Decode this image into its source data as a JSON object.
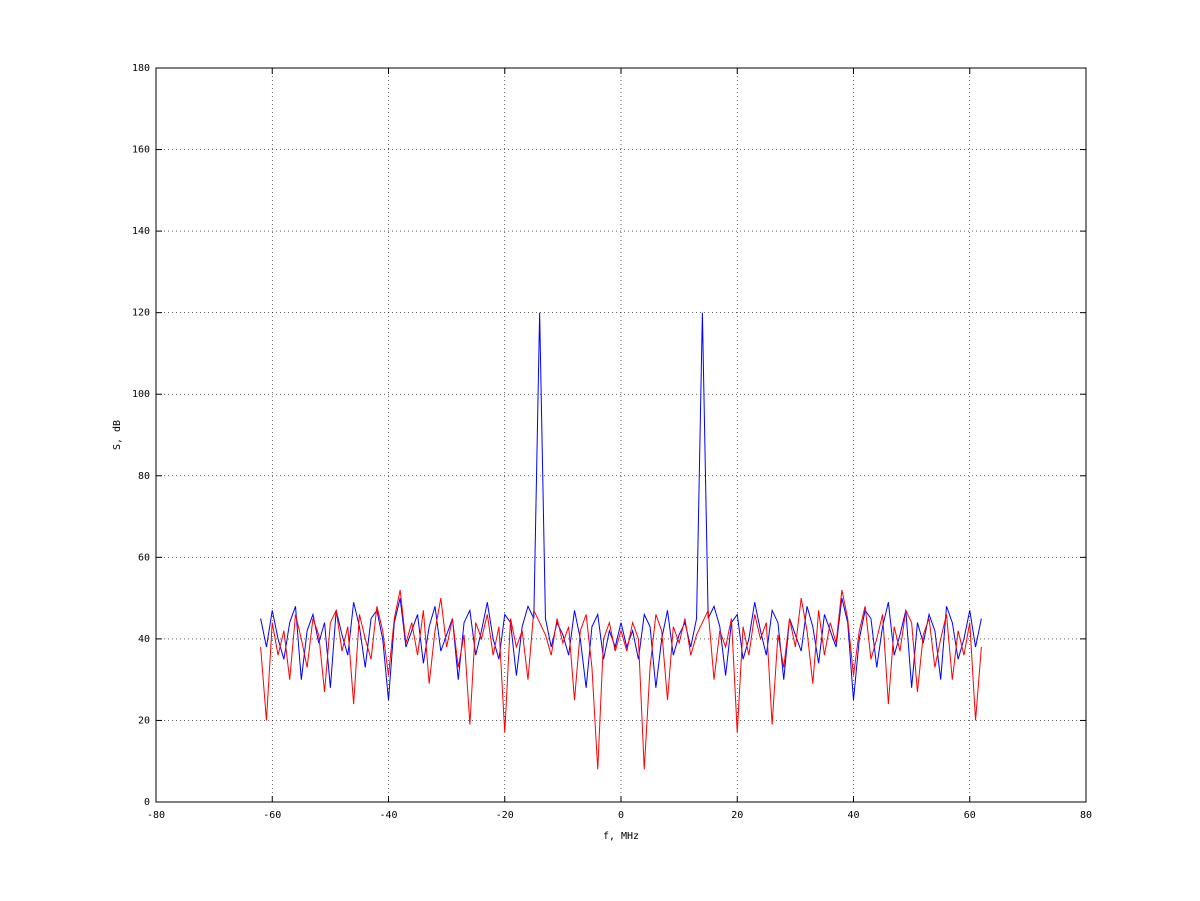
{
  "chart_data": {
    "type": "line",
    "xlabel": "f, MHz",
    "ylabel": "S, dB",
    "xlim": [
      -80,
      80
    ],
    "xticks": [
      -80,
      -60,
      -40,
      -20,
      0,
      20,
      40,
      60,
      80
    ],
    "ylim": [
      0,
      180
    ],
    "yticks": [
      0,
      20,
      40,
      60,
      80,
      100,
      120,
      140,
      160,
      180
    ],
    "grid": true,
    "x": [
      -62,
      -61,
      -60,
      -59,
      -58,
      -57,
      -56,
      -55,
      -54,
      -53,
      -52,
      -51,
      -50,
      -49,
      -48,
      -47,
      -46,
      -45,
      -44,
      -43,
      -42,
      -41,
      -40,
      -39,
      -38,
      -37,
      -36,
      -35,
      -34,
      -33,
      -32,
      -31,
      -30,
      -29,
      -28,
      -27,
      -26,
      -25,
      -24,
      -23,
      -22,
      -21,
      -20,
      -19,
      -18,
      -17,
      -16,
      -15,
      -14,
      -13,
      -12,
      -11,
      -10,
      -9,
      -8,
      -7,
      -6,
      -5,
      -4,
      -3,
      -2,
      -1,
      0,
      1,
      2,
      3,
      4,
      5,
      6,
      7,
      8,
      9,
      10,
      11,
      12,
      13,
      14,
      15,
      16,
      17,
      18,
      19,
      20,
      21,
      22,
      23,
      24,
      25,
      26,
      27,
      28,
      29,
      30,
      31,
      32,
      33,
      34,
      35,
      36,
      37,
      38,
      39,
      40,
      41,
      42,
      43,
      44,
      45,
      46,
      47,
      48,
      49,
      50,
      51,
      52,
      53,
      54,
      55,
      56,
      57,
      58,
      59,
      60,
      61,
      62
    ],
    "series": [
      {
        "color": "#0000ff",
        "values": [
          45,
          38,
          47,
          40,
          35,
          44,
          48,
          30,
          42,
          46,
          39,
          44,
          28,
          47,
          41,
          36,
          49,
          43,
          33,
          45,
          47,
          40,
          25,
          44,
          50,
          38,
          42,
          46,
          34,
          43,
          48,
          37,
          41,
          45,
          30,
          44,
          47,
          36,
          42,
          49,
          40,
          35,
          46,
          44,
          31,
          43,
          48,
          45,
          120,
          45,
          38,
          44,
          41,
          36,
          47,
          40,
          28,
          43,
          46,
          35,
          42,
          38,
          44,
          38,
          42,
          35,
          46,
          43,
          28,
          40,
          47,
          36,
          41,
          44,
          38,
          45,
          120,
          45,
          48,
          43,
          31,
          44,
          46,
          35,
          40,
          49,
          42,
          36,
          47,
          44,
          30,
          45,
          41,
          37,
          48,
          43,
          34,
          46,
          42,
          38,
          50,
          44,
          25,
          40,
          47,
          45,
          33,
          43,
          49,
          36,
          41,
          47,
          28,
          44,
          39,
          46,
          42,
          30,
          48,
          44,
          35,
          40,
          47,
          38,
          45
        ]
      },
      {
        "color": "#ff0000",
        "values": [
          38,
          20,
          44,
          36,
          42,
          30,
          46,
          40,
          33,
          45,
          41,
          27,
          44,
          47,
          37,
          43,
          24,
          46,
          40,
          35,
          48,
          42,
          31,
          45,
          52,
          39,
          44,
          36,
          47,
          29,
          42,
          50,
          38,
          45,
          33,
          41,
          19,
          44,
          40,
          46,
          36,
          43,
          17,
          45,
          38,
          42,
          30,
          47,
          44,
          41,
          36,
          45,
          39,
          43,
          25,
          42,
          46,
          33,
          8,
          40,
          44,
          37,
          42,
          37,
          44,
          40,
          8,
          33,
          46,
          42,
          25,
          43,
          39,
          45,
          36,
          41,
          44,
          47,
          30,
          42,
          38,
          45,
          17,
          43,
          36,
          46,
          40,
          44,
          19,
          41,
          33,
          45,
          38,
          50,
          42,
          29,
          47,
          36,
          44,
          39,
          52,
          45,
          31,
          42,
          48,
          35,
          40,
          46,
          24,
          43,
          37,
          47,
          44,
          27,
          41,
          45,
          33,
          40,
          46,
          30,
          42,
          36,
          44,
          20,
          38
        ]
      }
    ]
  }
}
